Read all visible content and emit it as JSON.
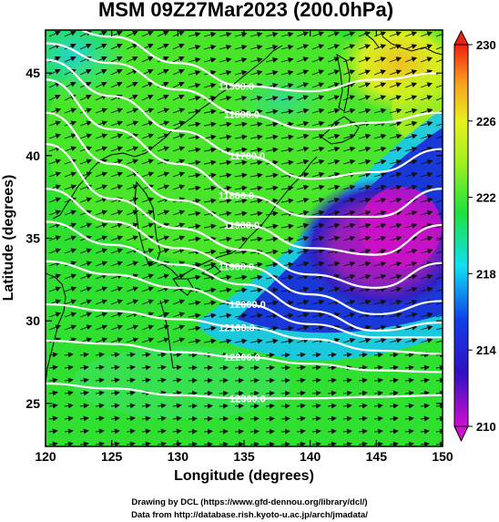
{
  "title": "MSM 09Z27Mar2023 (200.0hPa)",
  "xlabel": "Longitude (degrees)",
  "ylabel": "Latitude  (degrees)",
  "credits": {
    "drawing": "Drawing by DCL (https://www.gfd-dennou.org/library/dcl/)",
    "data": "Data from http://database.rish.kyoto-u.ac.jp/arch/jmadata/"
  },
  "map": {
    "lon_range": [
      120,
      150
    ],
    "lat_range": [
      22.4,
      47.6
    ],
    "x_ticks": [
      "120",
      "125",
      "130",
      "135",
      "140",
      "145",
      "150"
    ],
    "y_ticks": [
      "25",
      "30",
      "35",
      "40",
      "45"
    ],
    "colorbar": {
      "min": 210,
      "max": 230,
      "tick_labels": [
        "210",
        "214",
        "218",
        "222",
        "226",
        "230"
      ],
      "colors": [
        "#d010d0",
        "#1010c8",
        "#10e0f0",
        "#20e040",
        "#e8f020",
        "#f8a020",
        "#f02010"
      ]
    },
    "contours": [
      {
        "label": "11500.0",
        "lats": [
          48.2,
          47.2,
          45.6,
          44.2,
          43.9,
          44.6,
          45.0
        ]
      },
      {
        "label": "11600.0",
        "lats": [
          46.8,
          45.6,
          44.0,
          42.5,
          41.6,
          42.0,
          42.6
        ]
      },
      {
        "label": "11700.0",
        "lats": [
          45.8,
          43.6,
          41.5,
          40.0,
          38.6,
          39.0,
          40.4
        ]
      },
      {
        "label": "11800.0",
        "lats": [
          44.6,
          41.6,
          39.5,
          37.6,
          36.3,
          36.3,
          38.0
        ]
      },
      {
        "label": "11900.0",
        "lats": [
          42.6,
          39.5,
          37.3,
          35.8,
          34.4,
          34.0,
          35.8
        ]
      },
      {
        "label": "",
        "lats": [
          40.7,
          37.4,
          35.6,
          34.3,
          32.8,
          32.0,
          33.5
        ]
      },
      {
        "label": "11900.0",
        "lats": [
          38.0,
          36.0,
          34.4,
          33.3,
          31.6,
          30.4,
          31.2
        ]
      },
      {
        "label": "",
        "lats": [
          36.0,
          34.6,
          33.4,
          32.2,
          30.6,
          29.4,
          29.9
        ]
      },
      {
        "label": "12000.0",
        "lats": [
          33.6,
          32.8,
          32.0,
          31.0,
          29.8,
          29.0,
          29.0
        ]
      },
      {
        "label": "12100.0",
        "lats": [
          31.0,
          30.6,
          30.1,
          29.6,
          28.9,
          28.2,
          28.0
        ]
      },
      {
        "label": "12200.0",
        "lats": [
          28.8,
          28.6,
          28.1,
          27.8,
          27.4,
          27.0,
          26.9
        ]
      },
      {
        "label": "12300.0",
        "lats": [
          26.2,
          25.9,
          25.5,
          25.3,
          25.3,
          25.4,
          25.5
        ]
      }
    ]
  }
}
